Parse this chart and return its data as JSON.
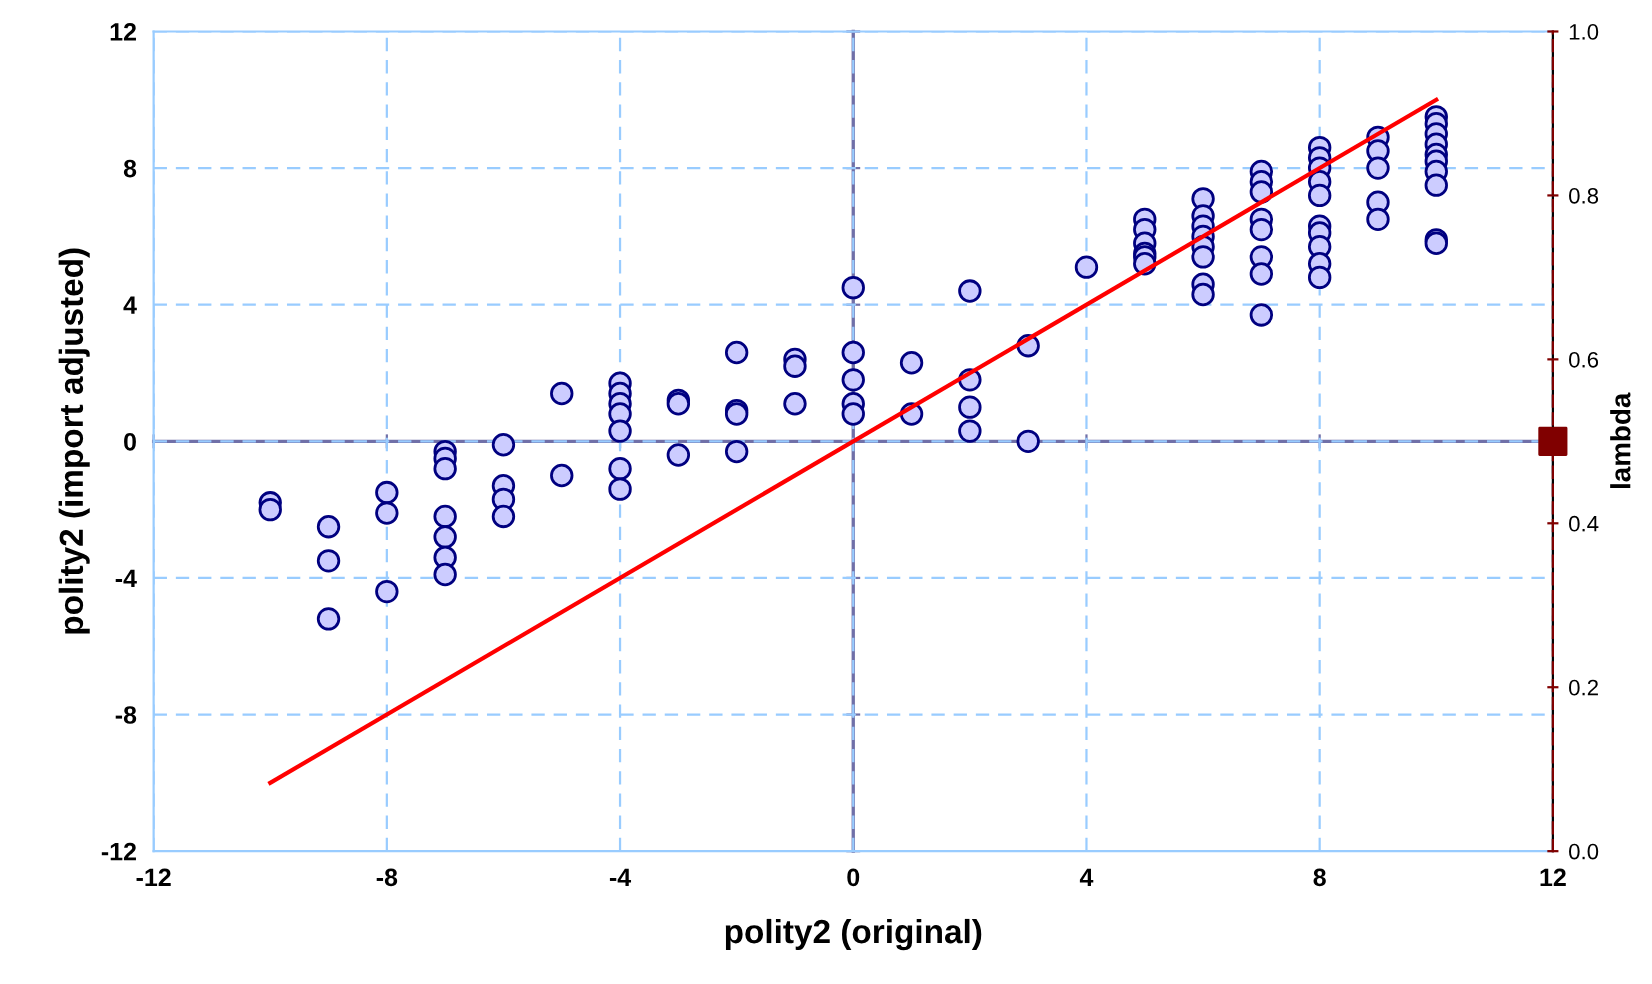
{
  "chart_data": {
    "type": "scatter",
    "xlabel": "polity2 (original)",
    "ylabel": "polity2 (import adjusted)",
    "y2label": "lambda",
    "xlim": [
      -12,
      12
    ],
    "xticks": [
      -12,
      -8,
      -4,
      0,
      4,
      8,
      12
    ],
    "ylim": [
      -12,
      12
    ],
    "yticks": [
      -12,
      -8,
      -4,
      0,
      4,
      8,
      12
    ],
    "y2lim": [
      0,
      1
    ],
    "y2ticks": [
      {
        "value": 0,
        "label": "0.0"
      },
      0.2,
      0.4,
      0.6,
      0.8,
      {
        "value": 1,
        "label": "1.0"
      }
    ],
    "grid": true,
    "legend": false,
    "series": [
      {
        "marker": "circle",
        "color": "#ccccff",
        "x": [
          -10,
          -10,
          -9,
          -9,
          -9,
          -8,
          -8,
          -8,
          -7,
          -7,
          -7,
          -7,
          -7,
          -7,
          -7,
          -6,
          -6,
          -6,
          -6,
          -5,
          -5,
          -4,
          -4,
          -4,
          -4,
          -4,
          -4,
          -4,
          -3,
          -3,
          -3,
          -2,
          -2,
          -2,
          -2,
          -1,
          -1,
          -1,
          0,
          0,
          0,
          0,
          0,
          1,
          1,
          2,
          2,
          2,
          2,
          3,
          3,
          4,
          5,
          5,
          5,
          5,
          5,
          5,
          6,
          6,
          6,
          6,
          6,
          6,
          6,
          6,
          7,
          7,
          7,
          7,
          7,
          7,
          7,
          7,
          8,
          8,
          8,
          8,
          8,
          8,
          8,
          8,
          8,
          8,
          9,
          9,
          9,
          9,
          9,
          10,
          10,
          10,
          10,
          10,
          10,
          10,
          10,
          10,
          10
        ],
        "values": [
          -1.8,
          -2.0,
          -2.5,
          -3.5,
          -5.2,
          -1.5,
          -2.1,
          -4.4,
          -0.3,
          -0.5,
          -0.8,
          -2.2,
          -2.8,
          -3.4,
          -3.9,
          -0.1,
          -1.3,
          -1.7,
          -2.2,
          1.4,
          -1.0,
          1.7,
          1.4,
          1.1,
          0.8,
          0.3,
          -0.8,
          -1.4,
          1.2,
          1.1,
          -0.4,
          2.6,
          0.9,
          0.8,
          -0.3,
          2.4,
          2.2,
          1.1,
          4.5,
          2.6,
          1.8,
          1.1,
          0.8,
          2.3,
          0.8,
          4.4,
          1.8,
          1.0,
          0.3,
          2.8,
          0.0,
          5.1,
          6.5,
          6.2,
          5.8,
          5.5,
          5.4,
          5.2,
          7.1,
          6.6,
          6.3,
          6.0,
          5.7,
          5.4,
          4.6,
          4.3,
          7.9,
          7.6,
          7.3,
          6.5,
          6.2,
          5.4,
          4.9,
          3.7,
          8.6,
          8.3,
          8.0,
          7.6,
          7.2,
          6.3,
          6.1,
          5.7,
          5.2,
          4.8,
          8.9,
          8.5,
          8.0,
          7.0,
          6.5,
          9.5,
          9.3,
          9.0,
          8.7,
          8.4,
          8.2,
          7.9,
          7.5,
          5.9,
          5.8
        ]
      },
      {
        "type": "line",
        "color": "#ff0000",
        "marker": "none",
        "x": [
          -10,
          10
        ],
        "values": [
          -10,
          10
        ]
      },
      {
        "type": "scatter",
        "marker": "square",
        "color": "#800000",
        "axis": "y2",
        "x": [
          12
        ],
        "values": [
          0.5
        ]
      }
    ]
  }
}
